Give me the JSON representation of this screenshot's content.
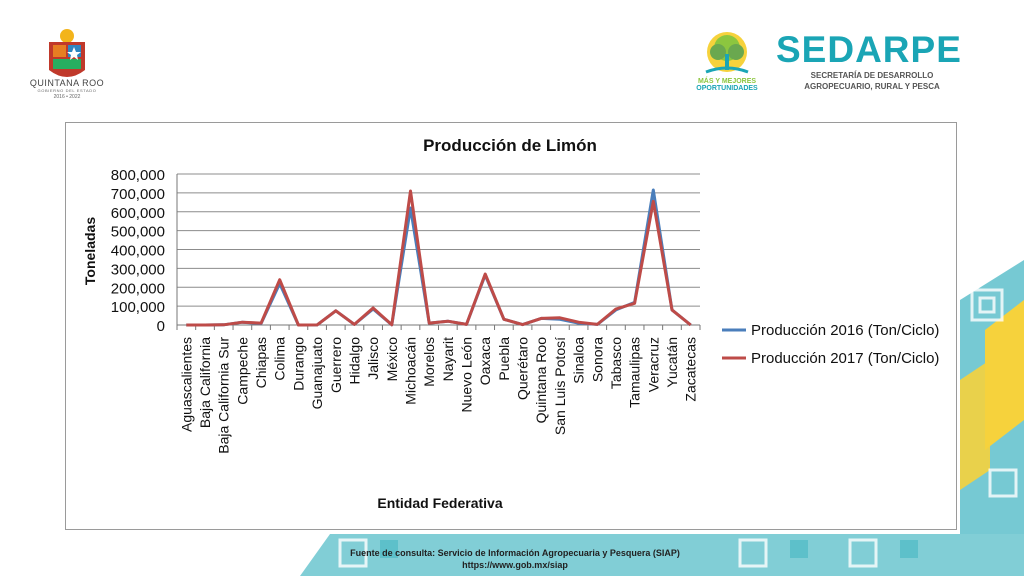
{
  "header": {
    "state_logo": {
      "name": "QUINTANA ROO",
      "subtitle": "GOBIERNO DEL ESTADO",
      "years": "2016 • 2022"
    },
    "campaign_logo": {
      "line1": "MÁS Y MEJORES",
      "line2": "OPORTUNIDADES"
    },
    "agency": {
      "title": "SEDARPE",
      "line1": "SECRETARÍA DE DESARROLLO",
      "line2": "AGROPECUARIO, RURAL Y PESCA"
    }
  },
  "colors": {
    "teal": "#1aa5b5",
    "yellow": "#f6d23c",
    "green": "#8cc63f",
    "series_2016": "#4a7ebb",
    "series_2017": "#be4b48"
  },
  "chart_data": {
    "type": "line",
    "title": "Producción de Limón",
    "xlabel": "Entidad Federativa",
    "ylabel": "Toneladas",
    "ylim": [
      0,
      800000
    ],
    "yticks": [
      "0",
      "100,000",
      "200,000",
      "300,000",
      "400,000",
      "500,000",
      "600,000",
      "700,000",
      "800,000"
    ],
    "grid": true,
    "legend_position": "right",
    "categories": [
      "Aguascalientes",
      "Baja California",
      "Baja California Sur",
      "Campeche",
      "Chiapas",
      "Colima",
      "Durango",
      "Guanajuato",
      "Guerrero",
      "Hidalgo",
      "Jalisco",
      "México",
      "Michoacán",
      "Morelos",
      "Nayarit",
      "Nuevo León",
      "Oaxaca",
      "Puebla",
      "Querétaro",
      "Quintana Roo",
      "San Luis Potosí",
      "Sinaloa",
      "Sonora",
      "Tabasco",
      "Tamaulipas",
      "Veracruz",
      "Yucatán",
      "Zacatecas"
    ],
    "series": [
      {
        "name": "Producción 2016 (Ton/Ciclo)",
        "values": [
          0,
          0,
          1000,
          15000,
          8000,
          220000,
          0,
          500,
          75000,
          3000,
          85000,
          1000,
          620000,
          10000,
          20000,
          3000,
          265000,
          30000,
          2000,
          35000,
          30000,
          10000,
          3000,
          80000,
          120000,
          715000,
          80000,
          0
        ]
      },
      {
        "name": "Producción 2017 (Ton/Ciclo)",
        "values": [
          0,
          0,
          1000,
          15000,
          10000,
          240000,
          0,
          500,
          75000,
          3000,
          90000,
          1000,
          710000,
          10000,
          20000,
          3000,
          270000,
          30000,
          2000,
          35000,
          38000,
          15000,
          3000,
          85000,
          115000,
          655000,
          80000,
          0
        ]
      }
    ]
  },
  "footer": {
    "line1": "Fuente de consulta: Servicio de Información Agropecuaria y Pesquera (SIAP)",
    "line2": "https://www.gob.mx/siap"
  }
}
